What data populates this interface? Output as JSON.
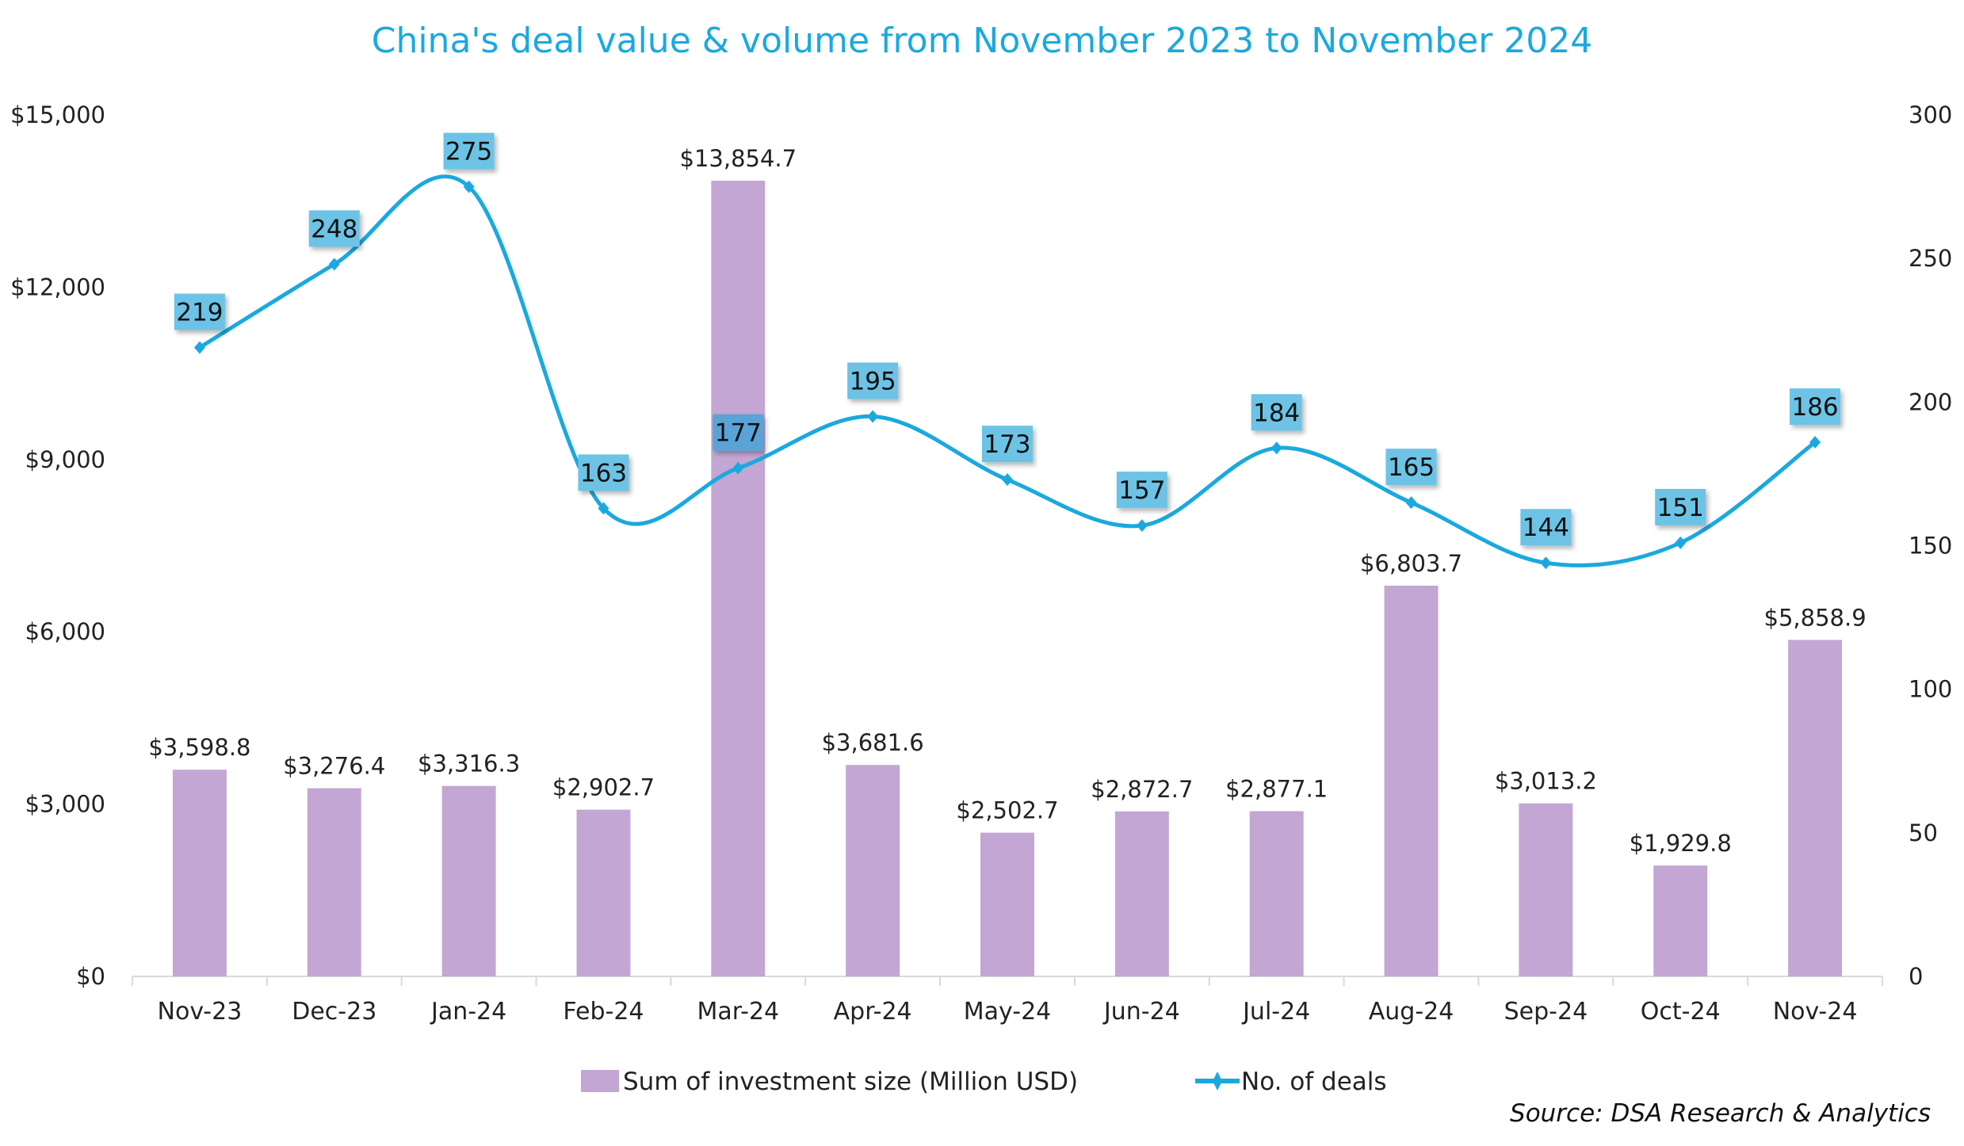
{
  "chart_data": {
    "type": "bar+line",
    "title": "China's deal value & volume from November 2023 to November 2024",
    "categories": [
      "Nov-23",
      "Dec-23",
      "Jan-24",
      "Feb-24",
      "Mar-24",
      "Apr-24",
      "May-24",
      "Jun-24",
      "Jul-24",
      "Aug-24",
      "Sep-24",
      "Oct-24",
      "Nov-24"
    ],
    "series": [
      {
        "name": "Sum of investment size (Million USD)",
        "type": "bar",
        "axis": "left",
        "color": "#c3a6d3",
        "values": [
          3598.8,
          3276.4,
          3316.3,
          2902.7,
          13854.7,
          3681.6,
          2502.7,
          2872.7,
          2877.1,
          6803.7,
          3013.2,
          1929.8,
          5858.9
        ],
        "labels": [
          "$3,598.8",
          "$3,276.4",
          "$3,316.3",
          "$2,902.7",
          "$13,854.7",
          "$3,681.6",
          "$2,502.7",
          "$2,872.7",
          "$2,877.1",
          "$6,803.7",
          "$3,013.2",
          "$1,929.8",
          "$5,858.9"
        ]
      },
      {
        "name": "No. of deals",
        "type": "line",
        "axis": "right",
        "smooth": true,
        "marker": "diamond",
        "color": "#1aa9df",
        "label_box_color": "#6cc3e6",
        "values": [
          219,
          248,
          275,
          163,
          177,
          195,
          173,
          157,
          184,
          165,
          144,
          151,
          186
        ],
        "labels": [
          "219",
          "248",
          "275",
          "163",
          "177",
          "195",
          "173",
          "157",
          "184",
          "165",
          "144",
          "151",
          "186"
        ]
      }
    ],
    "y_left": {
      "range": [
        0,
        15000
      ],
      "ticks": [
        0,
        3000,
        6000,
        9000,
        12000,
        15000
      ],
      "tick_labels": [
        "$0",
        "$3,000",
        "$6,000",
        "$9,000",
        "$12,000",
        "$15,000"
      ]
    },
    "y_right": {
      "range": [
        0,
        300
      ],
      "ticks": [
        0,
        50,
        100,
        150,
        200,
        250,
        300
      ],
      "tick_labels": [
        "0",
        "50",
        "100",
        "150",
        "200",
        "250",
        "300"
      ]
    },
    "xlabel": "",
    "ylabel": "",
    "grid": false,
    "legend": {
      "position": "bottom",
      "entries": [
        "Sum of investment size (Million USD)",
        "No. of deals"
      ]
    },
    "annotations": [
      "Source: DSA Research & Analytics"
    ]
  }
}
